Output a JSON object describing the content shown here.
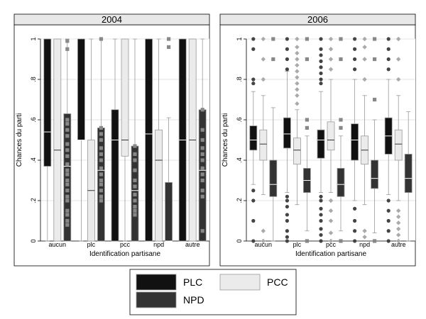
{
  "chart_data": [
    {
      "type": "boxplot",
      "title": "2004",
      "xlabel": "Identification partisane",
      "ylabel": "Chances du parti",
      "ylim": [
        0,
        1
      ],
      "yticks": [
        "0",
        ".2",
        ".4",
        ".6",
        ".8",
        "1"
      ],
      "categories": [
        "aucun",
        "plc",
        "pcc",
        "npd",
        "autre"
      ],
      "series": [
        {
          "name": "PLC",
          "boxes": [
            {
              "q1": 0.37,
              "median": 0.54,
              "q3": 1.0,
              "lo": 0.0,
              "hi": 1.0,
              "outliers": []
            },
            {
              "q1": 0.5,
              "median": 0.5,
              "q3": 1.0,
              "lo": 0.0,
              "hi": 1.0,
              "outliers": []
            },
            {
              "q1": 0.0,
              "median": 0.5,
              "q3": 0.65,
              "lo": 0.0,
              "hi": 1.0,
              "outliers": []
            },
            {
              "q1": 0.0,
              "median": 0.53,
              "q3": 1.0,
              "lo": 0.0,
              "hi": 1.0,
              "outliers": []
            },
            {
              "q1": 0.0,
              "median": 0.5,
              "q3": 1.0,
              "lo": 0.0,
              "hi": 1.0,
              "outliers": []
            }
          ]
        },
        {
          "name": "PCC",
          "boxes": [
            {
              "q1": 0.0,
              "median": 0.45,
              "q3": 1.0,
              "lo": 0.0,
              "hi": 1.0,
              "outliers": []
            },
            {
              "q1": 0.0,
              "median": 0.25,
              "q3": 0.5,
              "lo": 0.0,
              "hi": 1.0,
              "outliers": []
            },
            {
              "q1": 0.42,
              "median": 0.5,
              "q3": 1.0,
              "lo": 0.0,
              "hi": 1.0,
              "outliers": []
            },
            {
              "q1": 0.0,
              "median": 0.4,
              "q3": 0.55,
              "lo": 0.0,
              "hi": 1.0,
              "outliers": []
            },
            {
              "q1": 0.0,
              "median": 0.5,
              "q3": 1.0,
              "lo": 0.0,
              "hi": 1.0,
              "outliers": []
            }
          ]
        },
        {
          "name": "NPD",
          "boxes": [
            {
              "q1": 0.0,
              "median": 0.37,
              "q3": 0.63,
              "lo": 0.0,
              "hi": 1.0,
              "outliers": [
                0.08,
                0.1,
                0.13,
                0.15,
                0.2,
                0.22,
                0.25,
                0.28,
                0.3,
                0.33,
                0.35,
                0.38,
                0.42,
                0.45,
                0.48,
                0.52,
                0.55,
                0.58,
                0.6,
                0.95,
                0.99
              ]
            },
            {
              "q1": 0.0,
              "median": 0.35,
              "q3": 0.56,
              "lo": 0.0,
              "hi": 1.0,
              "outliers": [
                0.2,
                0.22,
                0.25,
                0.28,
                0.3,
                0.33,
                0.36,
                0.4,
                0.43,
                0.46,
                0.5,
                0.53,
                0.56,
                1.0
              ]
            },
            {
              "q1": 0.0,
              "median": 0.25,
              "q3": 0.47,
              "lo": 0.0,
              "hi": 1.0,
              "outliers": [
                0.13,
                0.15,
                0.17,
                0.2,
                0.23,
                0.27,
                0.3,
                0.35,
                0.4,
                0.43,
                0.47
              ]
            },
            {
              "q1": 0.0,
              "median": 0.0,
              "q3": 0.29,
              "lo": 0.0,
              "hi": 0.61,
              "outliers": [
                0.96,
                1.0
              ]
            },
            {
              "q1": 0.0,
              "median": 0.35,
              "q3": 0.65,
              "lo": 0.0,
              "hi": 1.0,
              "outliers": [
                0.05,
                0.22,
                0.25,
                0.3,
                0.33,
                0.36,
                0.4,
                0.43,
                0.46,
                0.5,
                0.55,
                0.65
              ]
            }
          ]
        }
      ]
    },
    {
      "type": "boxplot",
      "title": "2006",
      "xlabel": "Identification partisane",
      "ylabel": "Chances du parti",
      "ylim": [
        0,
        1
      ],
      "yticks": [
        "0",
        ".2",
        ".4",
        ".6",
        ".8",
        "1"
      ],
      "categories": [
        "aucun",
        "plc",
        "pcc",
        "npd",
        "autre"
      ],
      "series": [
        {
          "name": "PLC",
          "boxes": [
            {
              "q1": 0.45,
              "median": 0.5,
              "q3": 0.57,
              "lo": 0.28,
              "hi": 0.74,
              "outliers": [
                0.0,
                0.1,
                0.2,
                0.25,
                0.78,
                0.8,
                0.95,
                1.0
              ]
            },
            {
              "q1": 0.46,
              "median": 0.53,
              "q3": 0.61,
              "lo": 0.24,
              "hi": 0.84,
              "outliers": [
                0.0,
                0.02,
                0.05,
                0.1,
                0.13,
                0.17,
                0.2,
                0.22,
                0.85,
                0.9,
                0.95,
                1.0
              ]
            },
            {
              "q1": 0.41,
              "median": 0.5,
              "q3": 0.55,
              "lo": 0.24,
              "hi": 0.74,
              "outliers": [
                0.0,
                0.03,
                0.06,
                0.1,
                0.13,
                0.16,
                0.2,
                0.22,
                0.78,
                0.8,
                0.83,
                0.86,
                0.89,
                0.92,
                0.95,
                1.0
              ]
            },
            {
              "q1": 0.4,
              "median": 0.5,
              "q3": 0.58,
              "lo": 0.2,
              "hi": 0.8,
              "outliers": [
                0.0,
                0.05,
                0.1,
                0.16,
                0.85,
                0.9,
                0.95,
                1.0
              ]
            },
            {
              "q1": 0.43,
              "median": 0.52,
              "q3": 0.61,
              "lo": 0.23,
              "hi": 0.8,
              "outliers": [
                0.0,
                0.05,
                0.1,
                0.15,
                0.2,
                0.85,
                0.9,
                0.95,
                1.0
              ]
            }
          ]
        },
        {
          "name": "PCC",
          "boxes": [
            {
              "q1": 0.4,
              "median": 0.48,
              "q3": 0.55,
              "lo": 0.23,
              "hi": 0.72,
              "outliers": [
                0.0,
                0.05,
                0.8,
                0.9,
                1.0
              ]
            },
            {
              "q1": 0.38,
              "median": 0.45,
              "q3": 0.51,
              "lo": 0.18,
              "hi": 0.65,
              "outliers": [
                0.68,
                0.72,
                0.75,
                0.78,
                0.81,
                0.84,
                0.87,
                0.9,
                0.93,
                0.96,
                1.0
              ]
            },
            {
              "q1": 0.45,
              "median": 0.5,
              "q3": 0.59,
              "lo": 0.24,
              "hi": 0.8,
              "outliers": [
                0.0,
                0.04,
                0.1,
                0.15,
                0.2,
                0.85,
                0.9,
                0.95,
                1.0
              ]
            },
            {
              "q1": 0.38,
              "median": 0.45,
              "q3": 0.52,
              "lo": 0.18,
              "hi": 0.72,
              "outliers": [
                0.02,
                0.05,
                0.8,
                0.9,
                0.96,
                1.0
              ]
            },
            {
              "q1": 0.4,
              "median": 0.48,
              "q3": 0.55,
              "lo": 0.2,
              "hi": 0.72,
              "outliers": [
                0.0,
                0.03,
                0.06,
                0.09,
                0.12,
                0.15,
                0.8,
                0.9,
                1.0
              ]
            }
          ]
        },
        {
          "name": "NPD",
          "boxes": [
            {
              "q1": 0.22,
              "median": 0.28,
              "q3": 0.4,
              "lo": 0.0,
              "hi": 0.66,
              "outliers": [
                0.9,
                1.0
              ]
            },
            {
              "q1": 0.24,
              "median": 0.3,
              "q3": 0.36,
              "lo": 0.05,
              "hi": 0.52,
              "outliers": [
                0.0,
                0.56,
                0.6,
                0.9,
                1.0
              ]
            },
            {
              "q1": 0.22,
              "median": 0.28,
              "q3": 0.36,
              "lo": 0.05,
              "hi": 0.52,
              "outliers": [
                0.0,
                0.56,
                0.6,
                0.9,
                1.0
              ]
            },
            {
              "q1": 0.26,
              "median": 0.31,
              "q3": 0.4,
              "lo": 0.04,
              "hi": 0.6,
              "outliers": [
                0.0,
                0.7,
                0.9,
                1.0
              ]
            },
            {
              "q1": 0.24,
              "median": 0.31,
              "q3": 0.43,
              "lo": 0.0,
              "hi": 0.64,
              "outliers": []
            }
          ]
        }
      ]
    }
  ],
  "legend": [
    {
      "label": "PLC",
      "color": "#111111"
    },
    {
      "label": "PCC",
      "color": "#ebebeb"
    },
    {
      "label": "NPD",
      "color": "#333333"
    }
  ],
  "colors": {
    "PLC": "#111111",
    "PCC": "#ebebeb",
    "NPD": "#333333",
    "outline": "#9a9a9a",
    "grid": "#e6e6e6",
    "panel_bg": "#ffffff"
  }
}
